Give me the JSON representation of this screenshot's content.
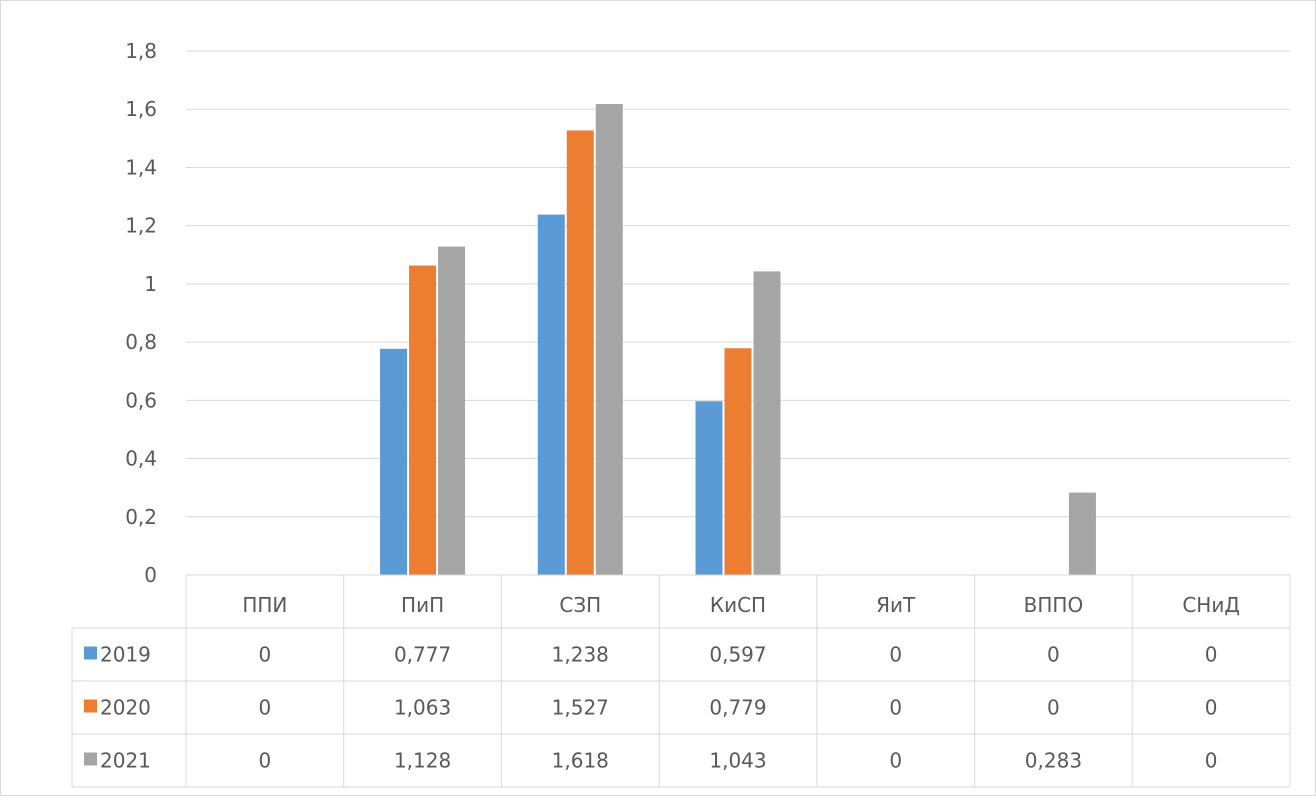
{
  "chart_data": {
    "type": "bar",
    "title": "",
    "xlabel": "",
    "ylabel": "",
    "ylim": [
      0,
      1.8
    ],
    "yticks": [
      "0",
      "0,2",
      "0,4",
      "0,6",
      "0,8",
      "1",
      "1,2",
      "1,4",
      "1,6",
      "1,8"
    ],
    "grid": true,
    "legend": "data-table-left",
    "categories": [
      "ППИ",
      "ПиП",
      "СЗП",
      "КиСП",
      "ЯиТ",
      "ВППО",
      "СНиД"
    ],
    "series": [
      {
        "name": "2019",
        "color": "#5B9BD5",
        "values": [
          0,
          0.777,
          1.238,
          0.597,
          0,
          0,
          0
        ],
        "labels": [
          "0",
          "0,777",
          "1,238",
          "0,597",
          "0",
          "0",
          "0"
        ]
      },
      {
        "name": "2020",
        "color": "#ED7D31",
        "values": [
          0,
          1.063,
          1.527,
          0.779,
          0,
          0,
          0
        ],
        "labels": [
          "0",
          "1,063",
          "1,527",
          "0,779",
          "0",
          "0",
          "0"
        ]
      },
      {
        "name": "2021",
        "color": "#A5A5A5",
        "values": [
          0,
          1.128,
          1.618,
          1.043,
          0,
          0.283,
          0
        ],
        "labels": [
          "0",
          "1,128",
          "1,618",
          "1,043",
          "0",
          "0,283",
          "0"
        ]
      }
    ]
  }
}
